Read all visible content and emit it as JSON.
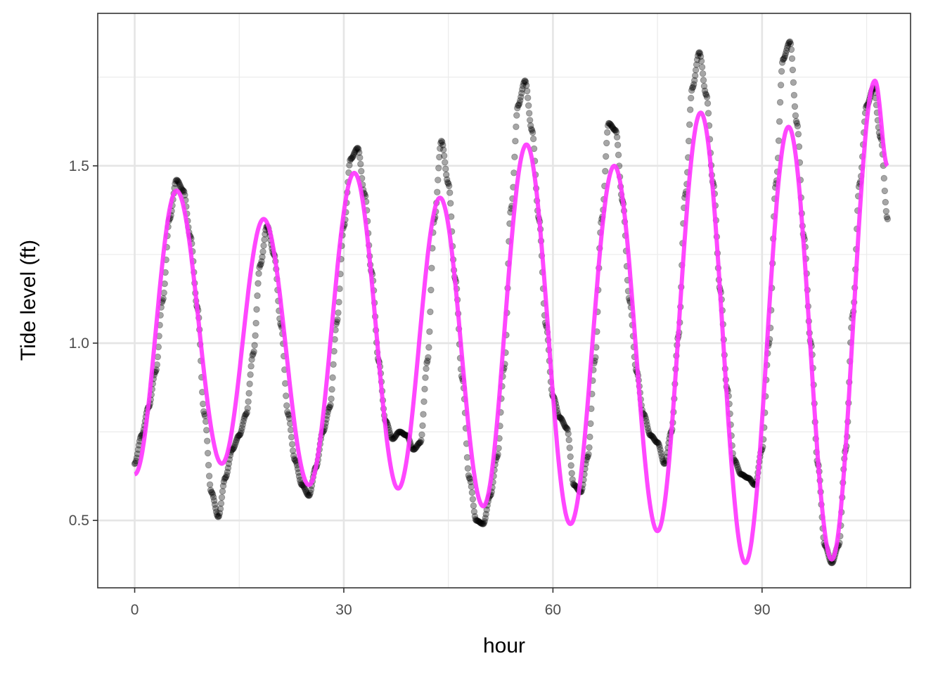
{
  "chart_data": {
    "type": "scatter",
    "title": "",
    "xlabel": "hour",
    "ylabel": "Tide level (ft)",
    "xlim": [
      -5.3,
      111.3
    ],
    "ylim": [
      0.31,
      1.93
    ],
    "x_ticks": [
      0,
      30,
      60,
      90
    ],
    "x_tick_labels": [
      "0",
      "30",
      "60",
      "90"
    ],
    "x_minor_ticks": [
      15,
      45,
      75,
      105
    ],
    "y_ticks": [
      0.5,
      1.0,
      1.5
    ],
    "y_tick_labels": [
      "0.5",
      "1.0",
      "1.5"
    ],
    "y_minor_ticks": [
      0.75,
      1.25,
      1.75
    ],
    "grid": true,
    "legend": "none",
    "series": [
      {
        "kind": "points",
        "color": "#000000",
        "opacity": 0.35,
        "anchors": [
          [
            0,
            0.66
          ],
          [
            1,
            0.74
          ],
          [
            2,
            0.82
          ],
          [
            3,
            0.92
          ],
          [
            4,
            1.12
          ],
          [
            5,
            1.35
          ],
          [
            6,
            1.46
          ],
          [
            7,
            1.43
          ],
          [
            8,
            1.3
          ],
          [
            9,
            1.1
          ],
          [
            10,
            0.8
          ],
          [
            11,
            0.58
          ],
          [
            12,
            0.51
          ],
          [
            13,
            0.62
          ],
          [
            14,
            0.7
          ],
          [
            15,
            0.74
          ],
          [
            16,
            0.8
          ],
          [
            17,
            0.97
          ],
          [
            18,
            1.22
          ],
          [
            19,
            1.33
          ],
          [
            20,
            1.25
          ],
          [
            21,
            1.05
          ],
          [
            22,
            0.8
          ],
          [
            23,
            0.67
          ],
          [
            24,
            0.6
          ],
          [
            25,
            0.57
          ],
          [
            26,
            0.65
          ],
          [
            27,
            0.75
          ],
          [
            28,
            0.82
          ],
          [
            29,
            1.06
          ],
          [
            30,
            1.33
          ],
          [
            31,
            1.52
          ],
          [
            32,
            1.55
          ],
          [
            33,
            1.42
          ],
          [
            34,
            1.2
          ],
          [
            35,
            0.95
          ],
          [
            36,
            0.78
          ],
          [
            37,
            0.73
          ],
          [
            38,
            0.75
          ],
          [
            39,
            0.74
          ],
          [
            40,
            0.7
          ],
          [
            41,
            0.72
          ],
          [
            42,
            0.95
          ],
          [
            43,
            1.35
          ],
          [
            44,
            1.57
          ],
          [
            45,
            1.45
          ],
          [
            46,
            1.18
          ],
          [
            47,
            0.9
          ],
          [
            48,
            0.62
          ],
          [
            49,
            0.5
          ],
          [
            50,
            0.49
          ],
          [
            51,
            0.57
          ],
          [
            52,
            0.68
          ],
          [
            53,
            0.93
          ],
          [
            54,
            1.38
          ],
          [
            55,
            1.67
          ],
          [
            56,
            1.74
          ],
          [
            57,
            1.6
          ],
          [
            58,
            1.35
          ],
          [
            59,
            1.05
          ],
          [
            60,
            0.85
          ],
          [
            61,
            0.79
          ],
          [
            62,
            0.76
          ],
          [
            63,
            0.6
          ],
          [
            64,
            0.58
          ],
          [
            65,
            0.68
          ],
          [
            66,
            0.95
          ],
          [
            67,
            1.35
          ],
          [
            68,
            1.62
          ],
          [
            69,
            1.6
          ],
          [
            70,
            1.4
          ],
          [
            71,
            1.12
          ],
          [
            72,
            0.92
          ],
          [
            73,
            0.8
          ],
          [
            74,
            0.74
          ],
          [
            75,
            0.72
          ],
          [
            76,
            0.66
          ],
          [
            77,
            0.75
          ],
          [
            78,
            1.02
          ],
          [
            79,
            1.42
          ],
          [
            80,
            1.72
          ],
          [
            81,
            1.82
          ],
          [
            82,
            1.7
          ],
          [
            83,
            1.45
          ],
          [
            84,
            1.15
          ],
          [
            85,
            0.87
          ],
          [
            86,
            0.67
          ],
          [
            87,
            0.63
          ],
          [
            88,
            0.62
          ],
          [
            89,
            0.6
          ],
          [
            90,
            0.7
          ],
          [
            91,
            1.0
          ],
          [
            92,
            1.45
          ],
          [
            93,
            1.8
          ],
          [
            94,
            1.85
          ],
          [
            95,
            1.62
          ],
          [
            96,
            1.3
          ],
          [
            97,
            1.0
          ],
          [
            98,
            0.66
          ],
          [
            99,
            0.43
          ],
          [
            100,
            0.38
          ],
          [
            101,
            0.43
          ],
          [
            102,
            0.7
          ],
          [
            103,
            1.08
          ],
          [
            104,
            1.45
          ],
          [
            105,
            1.67
          ],
          [
            106,
            1.72
          ],
          [
            107,
            1.58
          ],
          [
            108,
            1.35
          ]
        ]
      },
      {
        "kind": "line",
        "color": "#ff33ff",
        "opacity": 0.9,
        "anchors": [
          [
            0,
            0.63
          ],
          [
            6,
            1.43
          ],
          [
            12.5,
            0.66
          ],
          [
            18.5,
            1.35
          ],
          [
            25,
            0.6
          ],
          [
            31.5,
            1.48
          ],
          [
            37.8,
            0.59
          ],
          [
            43.8,
            1.41
          ],
          [
            50,
            0.54
          ],
          [
            56.2,
            1.56
          ],
          [
            62.5,
            0.49
          ],
          [
            68.8,
            1.5
          ],
          [
            75,
            0.47
          ],
          [
            81.2,
            1.65
          ],
          [
            87.6,
            0.38
          ],
          [
            93.8,
            1.61
          ],
          [
            100,
            0.39
          ],
          [
            106.2,
            1.74
          ],
          [
            108,
            1.5
          ]
        ]
      }
    ]
  }
}
